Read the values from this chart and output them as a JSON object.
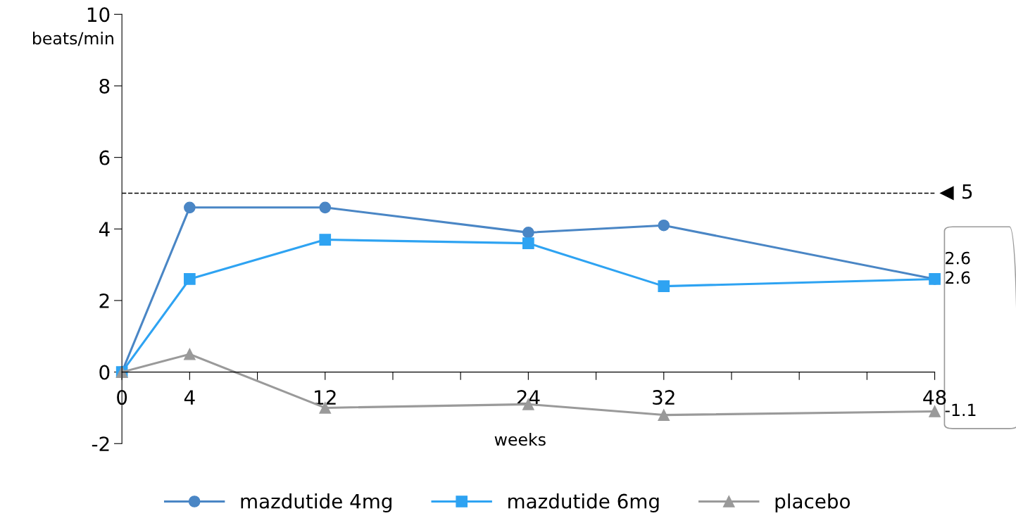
{
  "chart_data": {
    "type": "line",
    "xlabel": "weeks",
    "ylabel": "beats/min",
    "x": [
      0,
      4,
      12,
      24,
      32,
      48
    ],
    "xlim": [
      0,
      48
    ],
    "xticks": [
      0,
      4,
      {
        "value": 8,
        "label": null
      },
      12,
      {
        "value": 16,
        "label": null
      },
      {
        "value": 20,
        "label": null
      },
      24,
      {
        "value": 28,
        "label": null
      },
      32,
      {
        "value": 36,
        "label": null
      },
      {
        "value": 40,
        "label": null
      },
      {
        "value": 44,
        "label": null
      },
      48
    ],
    "ylim": [
      -2,
      10
    ],
    "yticks": [
      -2,
      0,
      2,
      4,
      6,
      8,
      10
    ],
    "series": [
      {
        "name": "mazdutide 4mg",
        "color": "#4a86c5",
        "marker": "circle",
        "values": [
          0,
          4.6,
          4.6,
          3.9,
          4.1,
          2.6
        ],
        "value_labels": [
          null,
          null,
          null,
          null,
          null,
          "2.6"
        ]
      },
      {
        "name": "mazdutide 6mg",
        "color": "#2ea3f2",
        "marker": "square",
        "values": [
          0,
          2.6,
          3.7,
          3.6,
          2.4,
          2.6
        ],
        "value_labels": [
          null,
          null,
          null,
          null,
          null,
          "2.6"
        ]
      },
      {
        "name": "placebo",
        "color": "#9a9a9a",
        "marker": "triangle",
        "values": [
          0,
          0.5,
          -1.0,
          -0.9,
          -1.2,
          -1.1
        ],
        "value_labels": [
          null,
          null,
          null,
          null,
          null,
          "-1.1"
        ]
      }
    ],
    "ref_lines": [
      {
        "axis": "y",
        "value": 5,
        "label": "5",
        "color": "#000000",
        "line_style": "dashed"
      }
    ],
    "grid": false,
    "legend": "bottom",
    "line_style": "solid"
  }
}
